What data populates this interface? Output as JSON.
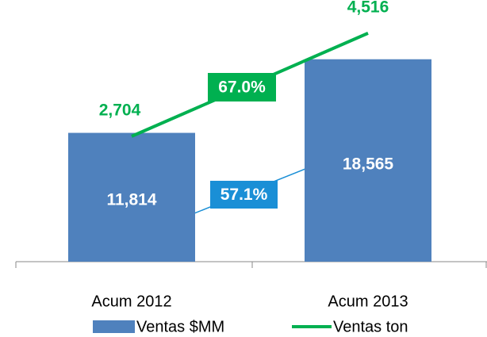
{
  "chart_data": {
    "type": "bar",
    "categories": [
      "Acum 2012",
      "Acum 2013"
    ],
    "series": [
      {
        "name": "Ventas $MM",
        "type": "bar",
        "color": "#4f81bd",
        "values": [
          11814,
          18565
        ],
        "value_labels": [
          "11,814",
          "18,565"
        ]
      },
      {
        "name": "Ventas ton",
        "type": "line",
        "axis": "y2",
        "color": "#00b050",
        "values": [
          2704,
          4516
        ],
        "value_labels": [
          "2,704",
          "4,516"
        ]
      }
    ],
    "annotations": [
      "67.0%",
      "57.1%"
    ],
    "ylim": [
      0,
      24000
    ],
    "y2lim": [
      500,
      5100
    ],
    "legend": "bottom"
  }
}
